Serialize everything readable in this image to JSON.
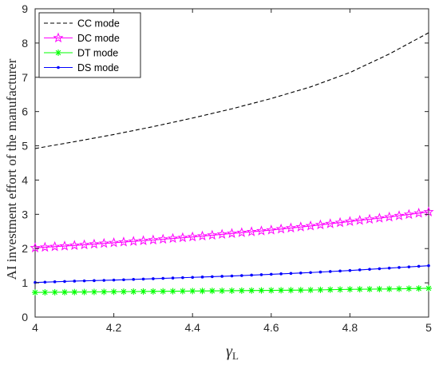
{
  "chart_data": {
    "type": "line",
    "title": "",
    "xlabel": "γ",
    "xlabel_sub": "L",
    "ylabel": "AI investment effort of the manufacturer",
    "xlim": [
      4,
      5
    ],
    "ylim": [
      0,
      9
    ],
    "xticks": [
      4,
      4.2,
      4.4,
      4.6,
      4.8,
      5
    ],
    "xtick_labels": [
      "4",
      "4.2",
      "4.4",
      "4.6",
      "4.8",
      "5"
    ],
    "yticks": [
      0,
      1,
      2,
      3,
      4,
      5,
      6,
      7,
      8,
      9
    ],
    "ytick_labels": [
      "0",
      "1",
      "2",
      "3",
      "4",
      "5",
      "6",
      "7",
      "8",
      "9"
    ],
    "grid": false,
    "legend_position": "top-left",
    "x": [
      4,
      4.1,
      4.2,
      4.3,
      4.4,
      4.5,
      4.6,
      4.7,
      4.8,
      4.9,
      5
    ],
    "series": [
      {
        "name": "CC mode",
        "color": "#000000",
        "style": "dashed",
        "marker": "none",
        "values": [
          4.92,
          5.12,
          5.33,
          5.56,
          5.81,
          6.08,
          6.38,
          6.72,
          7.14,
          7.68,
          8.3
        ]
      },
      {
        "name": "DC mode",
        "color": "#ff00ff",
        "style": "solid",
        "marker": "star",
        "values": [
          2.02,
          2.09,
          2.17,
          2.25,
          2.34,
          2.44,
          2.54,
          2.66,
          2.79,
          2.92,
          3.07
        ]
      },
      {
        "name": "DT mode",
        "color": "#00ff00",
        "style": "solid",
        "marker": "asterisk",
        "values": [
          0.72,
          0.73,
          0.74,
          0.75,
          0.76,
          0.77,
          0.78,
          0.79,
          0.81,
          0.82,
          0.84
        ]
      },
      {
        "name": "DS mode",
        "color": "#0000ff",
        "style": "solid",
        "marker": "dot",
        "values": [
          1.01,
          1.05,
          1.08,
          1.12,
          1.16,
          1.2,
          1.25,
          1.3,
          1.36,
          1.43,
          1.5
        ]
      }
    ]
  }
}
